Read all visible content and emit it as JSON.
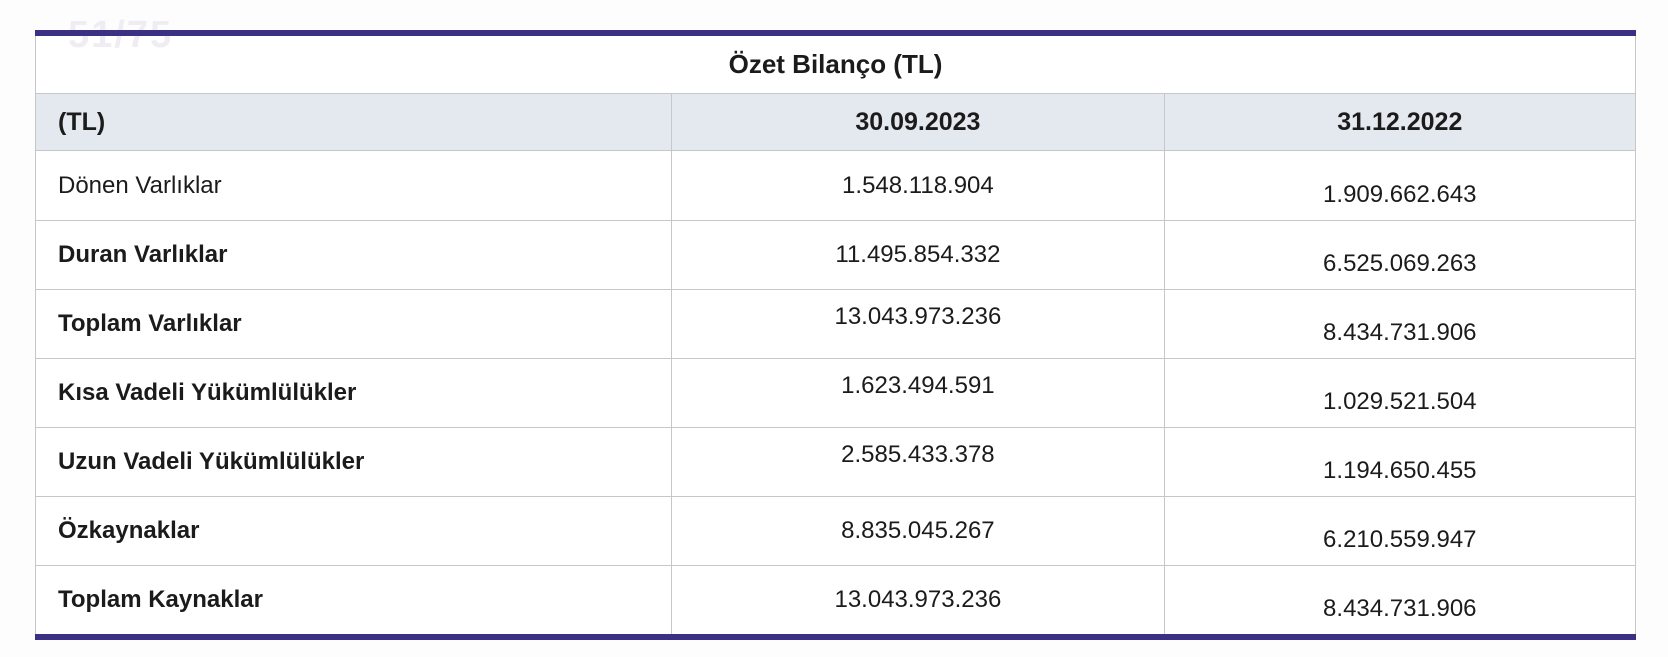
{
  "page": {
    "watermark": "51/75"
  },
  "table": {
    "title": "Özet Bilanço (TL)",
    "columns": [
      "(TL)",
      "30.09.2023",
      "31.12.2022"
    ],
    "rows": [
      {
        "label": "Dönen Varlıklar",
        "v2023": "1.548.118.904",
        "v2022": "1.909.662.643"
      },
      {
        "label": "Duran Varlıklar",
        "v2023": "11.495.854.332",
        "v2022": "6.525.069.263"
      },
      {
        "label": "Toplam Varlıklar",
        "v2023": "13.043.973.236",
        "v2022": "8.434.731.906"
      },
      {
        "label": "Kısa Vadeli Yükümlülükler",
        "v2023": "1.623.494.591",
        "v2022": "1.029.521.504"
      },
      {
        "label": "Uzun Vadeli Yükümlülükler",
        "v2023": "2.585.433.378",
        "v2022": "1.194.650.455"
      },
      {
        "label": "Özkaynaklar",
        "v2023": "8.835.045.267",
        "v2022": "6.210.559.947"
      },
      {
        "label": "Toplam Kaynaklar",
        "v2023": "13.043.973.236",
        "v2022": "8.434.731.906"
      }
    ],
    "colors": {
      "accent_border": "#3a3184",
      "header_bg": "#e4e9ef",
      "grid_line": "#c7c7c7",
      "text": "#1b1b1b",
      "watermark": "#efedf3"
    }
  },
  "chart_data": {
    "type": "table",
    "title": "Özet Bilanço (TL)",
    "columns": [
      "(TL)",
      "30.09.2023",
      "31.12.2022"
    ],
    "rows": [
      [
        "Dönen Varlıklar",
        "1.548.118.904",
        "1.909.662.643"
      ],
      [
        "Duran Varlıklar",
        "11.495.854.332",
        "6.525.069.263"
      ],
      [
        "Toplam Varlıklar",
        "13.043.973.236",
        "8.434.731.906"
      ],
      [
        "Kısa Vadeli Yükümlülükler",
        "1.623.494.591",
        "1.029.521.504"
      ],
      [
        "Uzun Vadeli Yükümlülükler",
        "2.585.433.378",
        "1.194.650.455"
      ],
      [
        "Özkaynaklar",
        "8.835.045.267",
        "6.210.559.947"
      ],
      [
        "Toplam Kaynaklar",
        "13.043.973.236",
        "8.434.731.906"
      ]
    ]
  }
}
